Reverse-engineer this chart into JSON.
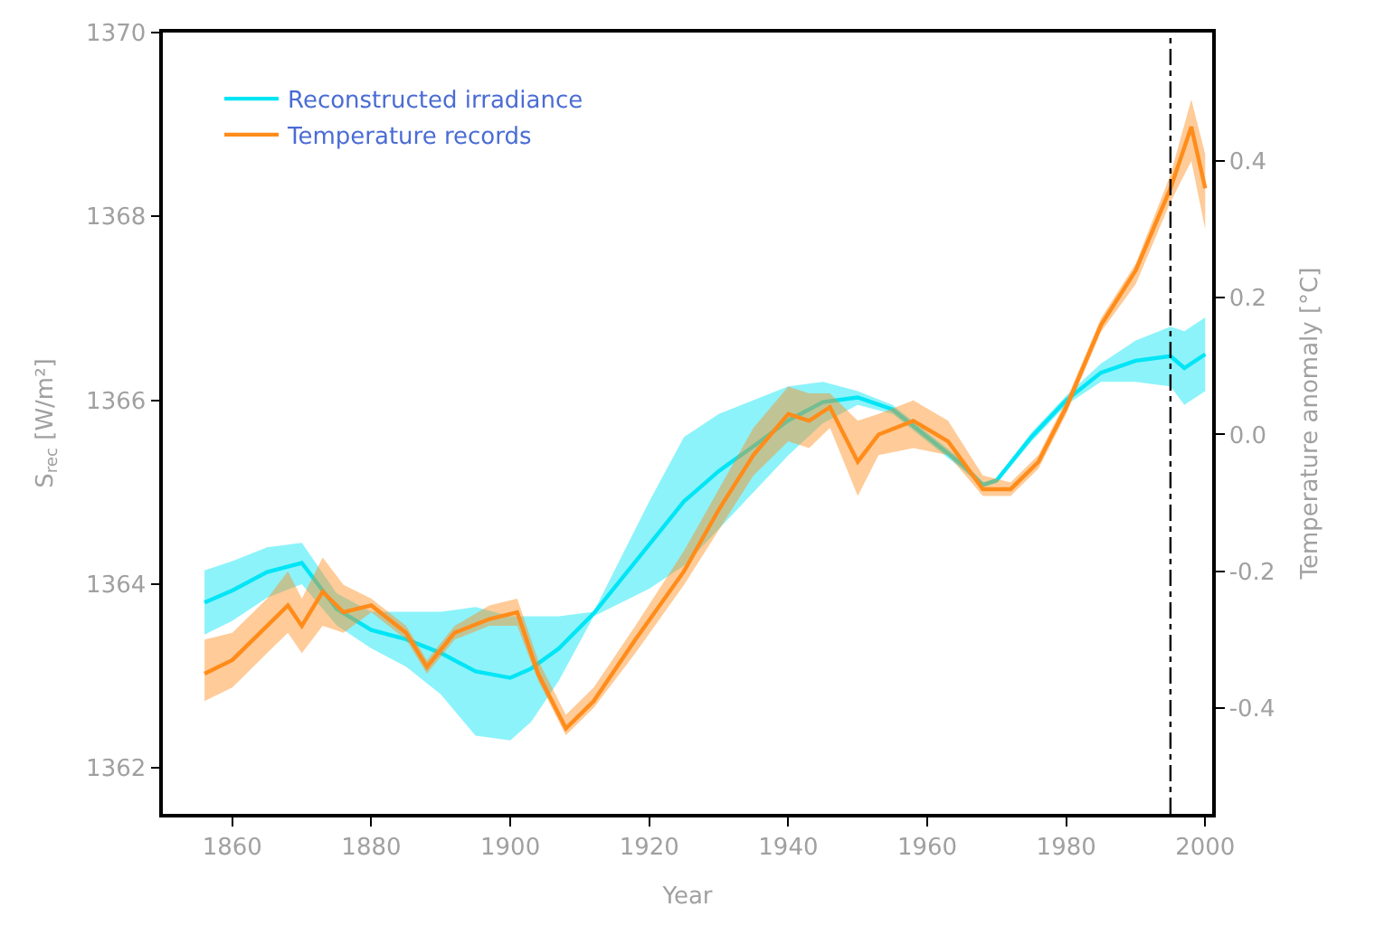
{
  "chart_data": {
    "type": "line",
    "xlabel": "Year",
    "ylabel": "S$_{rec}$ [W/m²]",
    "y2label": "Temperature anomaly [°C]",
    "xlim": [
      1850,
      2001
    ],
    "xticks": [
      1860,
      1880,
      1900,
      1920,
      1940,
      1960,
      1980,
      2000
    ],
    "ylim": [
      1361.5,
      1370
    ],
    "yticks": [
      1362,
      1364,
      1366,
      1368,
      1370
    ],
    "y2lim": [
      -0.555,
      0.588
    ],
    "y2ticks": [
      -0.4,
      -0.2,
      {
        "value": 0,
        "label": "0.0"
      },
      0.2,
      0.4
    ],
    "legend": "top left",
    "ref_lines": [
      {
        "axis": "x",
        "value": 1995,
        "color": "#000000",
        "line_style": "dashdot"
      }
    ],
    "series": [
      {
        "name": "Reconstructed irradiance",
        "color": "#00e5f5",
        "x": [
          1856,
          1860,
          1865,
          1870,
          1875,
          1880,
          1885,
          1890,
          1895,
          1900,
          1903,
          1907,
          1912,
          1920,
          1925,
          1930,
          1935,
          1940,
          1945,
          1950,
          1955,
          1960,
          1965,
          1968,
          1970,
          1975,
          1980,
          1985,
          1990,
          1995,
          1997,
          2000
        ],
        "values": [
          1363.8,
          1363.93,
          1364.13,
          1364.23,
          1363.73,
          1363.5,
          1363.4,
          1363.25,
          1363.05,
          1362.98,
          1363.08,
          1363.3,
          1363.68,
          1364.43,
          1364.9,
          1365.23,
          1365.5,
          1365.78,
          1365.98,
          1366.03,
          1365.9,
          1365.6,
          1365.3,
          1365.08,
          1365.13,
          1365.6,
          1366.0,
          1366.3,
          1366.43,
          1366.48,
          1366.35,
          1366.5
        ],
        "lower": [
          1363.45,
          1363.6,
          1363.85,
          1364.0,
          1363.55,
          1363.3,
          1363.1,
          1362.8,
          1362.35,
          1362.3,
          1362.5,
          1362.95,
          1363.65,
          1363.95,
          1364.2,
          1364.6,
          1365.0,
          1365.4,
          1365.75,
          1365.95,
          1365.85,
          1365.55,
          1365.25,
          1365.05,
          1365.1,
          1365.55,
          1365.95,
          1366.2,
          1366.2,
          1366.15,
          1365.95,
          1366.1
        ],
        "upper": [
          1364.15,
          1364.25,
          1364.4,
          1364.45,
          1363.9,
          1363.7,
          1363.7,
          1363.7,
          1363.75,
          1363.65,
          1363.65,
          1363.65,
          1363.7,
          1364.9,
          1365.6,
          1365.85,
          1366.0,
          1366.15,
          1366.2,
          1366.1,
          1365.95,
          1365.65,
          1365.35,
          1365.1,
          1365.15,
          1365.65,
          1366.05,
          1366.4,
          1366.65,
          1366.8,
          1366.75,
          1366.9
        ]
      },
      {
        "name": "Temperature records",
        "color": "#ff8c1a",
        "axis": "y2",
        "x": [
          1856,
          1860,
          1865,
          1868,
          1870,
          1873,
          1876,
          1880,
          1885,
          1888,
          1892,
          1897,
          1901,
          1904,
          1908,
          1912,
          1918,
          1925,
          1930,
          1935,
          1940,
          1943,
          1946,
          1950,
          1953,
          1958,
          1963,
          1968,
          1972,
          1976,
          1980,
          1985,
          1990,
          1995,
          1998,
          2000
        ],
        "values": [
          -0.35,
          -0.33,
          -0.28,
          -0.25,
          -0.28,
          -0.23,
          -0.26,
          -0.25,
          -0.29,
          -0.34,
          -0.29,
          -0.27,
          -0.26,
          -0.35,
          -0.43,
          -0.39,
          -0.3,
          -0.2,
          -0.11,
          -0.03,
          0.03,
          0.02,
          0.04,
          -0.04,
          0.0,
          0.02,
          -0.01,
          -0.08,
          -0.08,
          -0.04,
          0.04,
          0.16,
          0.24,
          0.36,
          0.45,
          0.36
        ],
        "lower": [
          -0.39,
          -0.37,
          -0.32,
          -0.29,
          -0.32,
          -0.28,
          -0.29,
          -0.26,
          -0.3,
          -0.35,
          -0.3,
          -0.28,
          -0.28,
          -0.36,
          -0.44,
          -0.4,
          -0.32,
          -0.22,
          -0.14,
          -0.06,
          -0.01,
          -0.02,
          0.01,
          -0.09,
          -0.03,
          -0.02,
          -0.03,
          -0.09,
          -0.09,
          -0.05,
          0.03,
          0.15,
          0.22,
          0.34,
          0.4,
          0.3
        ],
        "upper": [
          -0.3,
          -0.29,
          -0.24,
          -0.2,
          -0.24,
          -0.18,
          -0.22,
          -0.24,
          -0.28,
          -0.33,
          -0.28,
          -0.25,
          -0.24,
          -0.33,
          -0.41,
          -0.37,
          -0.28,
          -0.17,
          -0.08,
          0.01,
          0.07,
          0.06,
          0.06,
          0.02,
          0.03,
          0.05,
          0.02,
          -0.06,
          -0.07,
          -0.03,
          0.05,
          0.17,
          0.25,
          0.38,
          0.49,
          0.41
        ]
      }
    ]
  }
}
